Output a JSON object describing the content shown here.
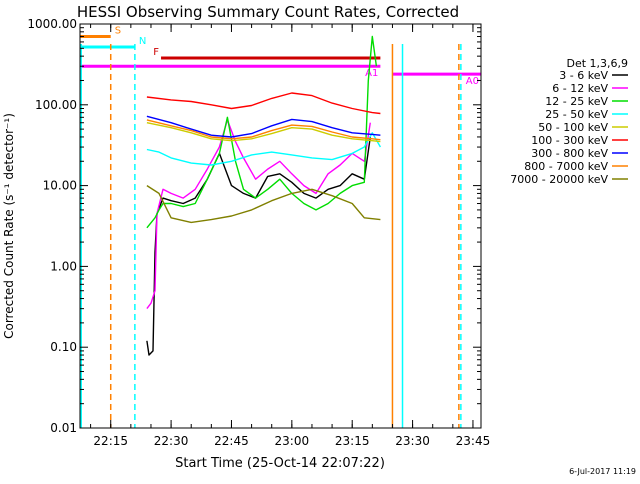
{
  "chart_data": {
    "type": "line",
    "title": "HESSI Observing Summary Count Rates, Corrected",
    "xlabel": "Start Time (25-Oct-14 22:07:22)",
    "ylabel": "Corrected Count Rate (s⁻¹ detector⁻¹)",
    "y_scale": "log",
    "ylim": [
      0.01,
      1000
    ],
    "xlim": [
      "22:07:22",
      "23:47:00"
    ],
    "x_ticks": [
      "22:15",
      "22:30",
      "22:45",
      "23:00",
      "23:15",
      "23:30",
      "23:45"
    ],
    "y_ticks": [
      "0.01",
      "0.10",
      "1.00",
      "10.00",
      "100.00",
      "1000.00"
    ],
    "legend": {
      "title": "Det 1,3,6,9",
      "placement": "right-outside",
      "entries": [
        {
          "label": "3 - 6 keV",
          "color": "#000000"
        },
        {
          "label": "6 - 12 keV",
          "color": "#ff00ff"
        },
        {
          "label": "12 - 25 keV",
          "color": "#00dd00"
        },
        {
          "label": "25 - 50 keV",
          "color": "#00ffff"
        },
        {
          "label": "50 - 100 keV",
          "color": "#cccc00"
        },
        {
          "label": "100 - 300 keV",
          "color": "#ff0000"
        },
        {
          "label": "300 - 800 keV",
          "color": "#0000ff"
        },
        {
          "label": "800 - 7000 keV",
          "color": "#ff8000"
        },
        {
          "label": "7000 - 20000 keV",
          "color": "#808000"
        }
      ]
    },
    "series": [
      {
        "name": "3 - 6 keV",
        "color": "#000000",
        "x": [
          "22:24:00",
          "22:24:30",
          "22:25:30",
          "22:26:00",
          "22:26:30",
          "22:28:00",
          "22:30:00",
          "22:33:00",
          "22:36:00",
          "22:39:00",
          "22:42:00",
          "22:45:00",
          "22:48:00",
          "22:51:00",
          "22:54:00",
          "22:57:00",
          "23:00:00",
          "23:03:00",
          "23:06:00",
          "23:09:00",
          "23:12:00",
          "23:15:00",
          "23:18:00",
          "23:19:30"
        ],
        "y": [
          0.12,
          0.08,
          0.09,
          1.5,
          4.5,
          7,
          6.5,
          6,
          7,
          12,
          25,
          10,
          8,
          7,
          13,
          14,
          11,
          8,
          7,
          9,
          10,
          14,
          12,
          40
        ]
      },
      {
        "name": "6 - 12 keV",
        "color": "#ff00ff",
        "x": [
          "22:24:00",
          "22:25:00",
          "22:26:00",
          "22:26:30",
          "22:28:00",
          "22:30:00",
          "22:33:00",
          "22:36:00",
          "22:39:00",
          "22:42:00",
          "22:44:00",
          "22:46:00",
          "22:48:00",
          "22:51:00",
          "22:54:00",
          "22:57:00",
          "23:00:00",
          "23:03:00",
          "23:06:00",
          "23:09:00",
          "23:12:00",
          "23:15:00",
          "23:18:00",
          "23:19:30"
        ],
        "y": [
          0.3,
          0.35,
          0.5,
          4.5,
          9,
          8,
          7,
          9,
          16,
          30,
          65,
          35,
          22,
          12,
          16,
          20,
          14,
          10,
          8,
          14,
          18,
          25,
          20,
          60
        ]
      },
      {
        "name": "12 - 25 keV",
        "color": "#00dd00",
        "x": [
          "22:24:00",
          "22:26:00",
          "22:27:00",
          "22:28:00",
          "22:30:00",
          "22:33:00",
          "22:36:00",
          "22:39:00",
          "22:42:00",
          "22:44:00",
          "22:46:00",
          "22:48:00",
          "22:51:00",
          "22:54:00",
          "22:57:00",
          "23:00:00",
          "23:03:00",
          "23:06:00",
          "23:09:00",
          "23:12:00",
          "23:15:00",
          "23:18:00",
          "23:19:00",
          "23:20:00",
          "23:21:00"
        ],
        "y": [
          3,
          4,
          5,
          6,
          6,
          5.5,
          6,
          12,
          25,
          70,
          20,
          9,
          7,
          9,
          12,
          8,
          6,
          5,
          6,
          8,
          10,
          11,
          200,
          700,
          300
        ]
      },
      {
        "name": "25 - 50 keV",
        "color": "#00ffff",
        "x": [
          "22:24:00",
          "22:27:00",
          "22:30:00",
          "22:35:00",
          "22:40:00",
          "22:45:00",
          "22:50:00",
          "22:55:00",
          "23:00:00",
          "23:05:00",
          "23:10:00",
          "23:15:00",
          "23:18:00",
          "23:20:00",
          "23:22:00"
        ],
        "y": [
          28,
          26,
          22,
          19,
          18,
          20,
          24,
          26,
          24,
          22,
          21,
          25,
          30,
          45,
          30
        ]
      },
      {
        "name": "50 - 100 keV",
        "color": "#cccc00",
        "x": [
          "22:24:00",
          "22:30:00",
          "22:35:00",
          "22:40:00",
          "22:45:00",
          "22:50:00",
          "22:55:00",
          "23:00:00",
          "23:05:00",
          "23:10:00",
          "23:15:00",
          "23:20:00",
          "23:22:00"
        ],
        "y": [
          60,
          52,
          45,
          38,
          36,
          38,
          44,
          52,
          50,
          42,
          38,
          36,
          35
        ]
      },
      {
        "name": "100 - 300 keV",
        "color": "#ff0000",
        "x": [
          "22:24:00",
          "22:30:00",
          "22:35:00",
          "22:40:00",
          "22:45:00",
          "22:50:00",
          "22:55:00",
          "23:00:00",
          "23:05:00",
          "23:10:00",
          "23:15:00",
          "23:20:00",
          "23:22:00"
        ],
        "y": [
          125,
          115,
          110,
          100,
          90,
          98,
          120,
          140,
          130,
          105,
          90,
          80,
          78
        ]
      },
      {
        "name": "300 - 800 keV",
        "color": "#0000ff",
        "x": [
          "22:24:00",
          "22:30:00",
          "22:35:00",
          "22:40:00",
          "22:45:00",
          "22:50:00",
          "22:55:00",
          "23:00:00",
          "23:05:00",
          "23:10:00",
          "23:15:00",
          "23:20:00",
          "23:22:00"
        ],
        "y": [
          72,
          60,
          50,
          42,
          40,
          44,
          55,
          66,
          62,
          52,
          45,
          43,
          42
        ]
      },
      {
        "name": "800 - 7000 keV",
        "color": "#ff8000",
        "x": [
          "22:24:00",
          "22:30:00",
          "22:35:00",
          "22:40:00",
          "22:45:00",
          "22:50:00",
          "22:55:00",
          "23:00:00",
          "23:05:00",
          "23:10:00",
          "23:15:00",
          "23:20:00",
          "23:22:00"
        ],
        "y": [
          65,
          55,
          48,
          40,
          38,
          40,
          48,
          56,
          54,
          46,
          40,
          38,
          37
        ]
      },
      {
        "name": "7000 - 20000 keV",
        "color": "#808000",
        "x": [
          "22:24:00",
          "22:27:00",
          "22:30:00",
          "22:35:00",
          "22:40:00",
          "22:45:00",
          "22:50:00",
          "22:55:00",
          "23:00:00",
          "23:05:00",
          "23:10:00",
          "23:15:00",
          "23:18:00",
          "23:22:00"
        ],
        "y": [
          10,
          8,
          4,
          3.5,
          3.8,
          4.2,
          5,
          6.5,
          8,
          9,
          7.5,
          6,
          4,
          3.8
        ]
      }
    ],
    "flags": [
      {
        "label": "S",
        "color": "#ff8000",
        "start": "22:07:22",
        "end": "22:15:00",
        "level": 700
      },
      {
        "label": "N",
        "color": "#00ffff",
        "start": "22:07:22",
        "end": "22:21:00",
        "level": 520
      },
      {
        "label": "F",
        "color": "#cc0000",
        "start": "22:27:30",
        "end": "23:22:00",
        "level": 380
      },
      {
        "label": "A1",
        "color": "#ff00ff",
        "start": "22:07:22",
        "end": "23:22:00",
        "level": 300
      },
      {
        "label": "A0",
        "color": "#ff00ff",
        "start": "23:25:00",
        "end": "23:47:00",
        "level": 240
      }
    ],
    "vertical_markers": [
      {
        "color": "#00ffff",
        "time": "22:07:40",
        "style": "solid"
      },
      {
        "color": "#ff8000",
        "time": "22:15:00",
        "style": "dashed"
      },
      {
        "color": "#00ffff",
        "time": "22:21:00",
        "style": "dashed"
      },
      {
        "color": "#ff8000",
        "time": "23:25:00",
        "style": "solid"
      },
      {
        "color": "#00ffff",
        "time": "23:27:30",
        "style": "solid"
      },
      {
        "color": "#ff8000",
        "time": "23:41:30",
        "style": "dashed"
      },
      {
        "color": "#00ffff",
        "time": "23:42:00",
        "style": "dashed"
      }
    ],
    "timestamp": "6-Jul-2017 11:19"
  }
}
